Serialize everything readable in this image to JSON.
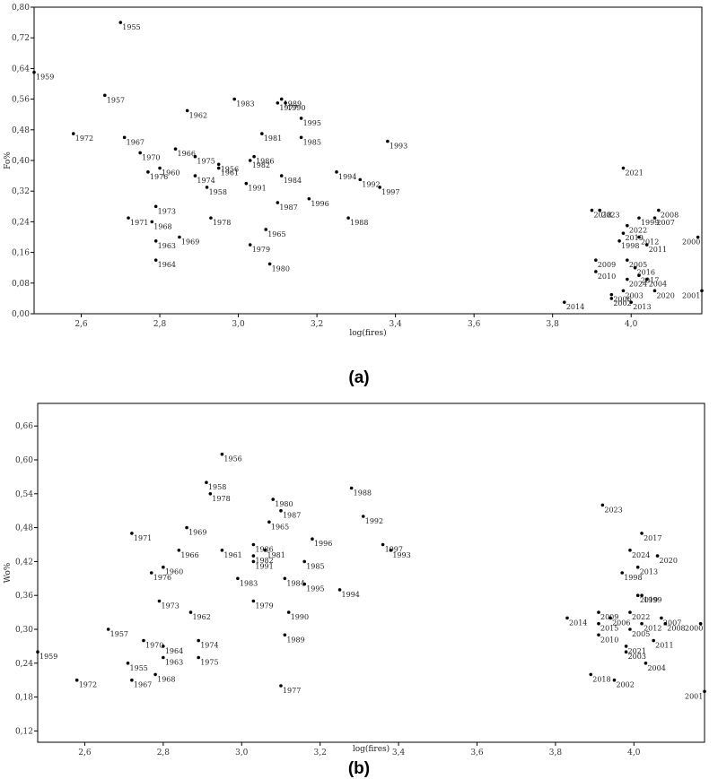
{
  "chart_data": [
    {
      "type": "scatter",
      "caption": "(a)",
      "xlabel": "log(fires)",
      "ylabel": "Fo%",
      "xlim": [
        2.48,
        4.18
      ],
      "ylim": [
        0.0,
        0.8
      ],
      "x_ticks": [
        "2,6",
        "2,8",
        "3,0",
        "3,2",
        "3,4",
        "3,6",
        "3,8",
        "4,0"
      ],
      "y_ticks": [
        "0,00",
        "0,08",
        "0,16",
        "0,24",
        "0,32",
        "0,40",
        "0,48",
        "0,56",
        "0,64",
        "0,72",
        "0,80"
      ],
      "grid": false,
      "points": [
        {
          "label": "1955",
          "x": 2.7,
          "y": 0.76
        },
        {
          "label": "1959",
          "x": 2.48,
          "y": 0.63
        },
        {
          "label": "1957",
          "x": 2.66,
          "y": 0.57
        },
        {
          "label": "1983",
          "x": 2.99,
          "y": 0.56
        },
        {
          "label": "1989",
          "x": 3.11,
          "y": 0.56
        },
        {
          "label": "1977",
          "x": 3.1,
          "y": 0.55
        },
        {
          "label": "1990",
          "x": 3.12,
          "y": 0.55
        },
        {
          "label": "1962",
          "x": 2.87,
          "y": 0.53
        },
        {
          "label": "1995",
          "x": 3.16,
          "y": 0.51
        },
        {
          "label": "1972",
          "x": 2.58,
          "y": 0.47
        },
        {
          "label": "1981",
          "x": 3.06,
          "y": 0.47
        },
        {
          "label": "1967",
          "x": 2.71,
          "y": 0.46
        },
        {
          "label": "1985",
          "x": 3.16,
          "y": 0.46
        },
        {
          "label": "1993",
          "x": 3.38,
          "y": 0.45
        },
        {
          "label": "1966",
          "x": 2.84,
          "y": 0.43
        },
        {
          "label": "1970",
          "x": 2.75,
          "y": 0.42
        },
        {
          "label": "1975",
          "x": 2.89,
          "y": 0.41
        },
        {
          "label": "1986",
          "x": 3.04,
          "y": 0.41
        },
        {
          "label": "1982",
          "x": 3.03,
          "y": 0.4
        },
        {
          "label": "1956",
          "x": 2.95,
          "y": 0.39
        },
        {
          "label": "1961",
          "x": 2.95,
          "y": 0.38
        },
        {
          "label": "1960",
          "x": 2.8,
          "y": 0.38
        },
        {
          "label": "1976",
          "x": 2.77,
          "y": 0.37
        },
        {
          "label": "1994",
          "x": 3.25,
          "y": 0.37
        },
        {
          "label": "1974",
          "x": 2.89,
          "y": 0.36
        },
        {
          "label": "1984",
          "x": 3.11,
          "y": 0.36
        },
        {
          "label": "1992",
          "x": 3.31,
          "y": 0.35
        },
        {
          "label": "1991",
          "x": 3.02,
          "y": 0.34
        },
        {
          "label": "1958",
          "x": 2.92,
          "y": 0.33
        },
        {
          "label": "1997",
          "x": 3.36,
          "y": 0.33
        },
        {
          "label": "1996",
          "x": 3.18,
          "y": 0.3
        },
        {
          "label": "1987",
          "x": 3.1,
          "y": 0.29
        },
        {
          "label": "1973",
          "x": 2.79,
          "y": 0.28
        },
        {
          "label": "1971",
          "x": 2.72,
          "y": 0.25
        },
        {
          "label": "1968",
          "x": 2.78,
          "y": 0.24
        },
        {
          "label": "1978",
          "x": 2.93,
          "y": 0.25
        },
        {
          "label": "1988",
          "x": 3.28,
          "y": 0.25
        },
        {
          "label": "1965",
          "x": 3.07,
          "y": 0.22
        },
        {
          "label": "1969",
          "x": 2.85,
          "y": 0.2
        },
        {
          "label": "1963",
          "x": 2.79,
          "y": 0.19
        },
        {
          "label": "1979",
          "x": 3.03,
          "y": 0.18
        },
        {
          "label": "1964",
          "x": 2.79,
          "y": 0.14
        },
        {
          "label": "1980",
          "x": 3.08,
          "y": 0.13
        },
        {
          "label": "2021",
          "x": 3.98,
          "y": 0.38
        },
        {
          "label": "2018",
          "x": 3.9,
          "y": 0.27
        },
        {
          "label": "2023",
          "x": 3.92,
          "y": 0.27
        },
        {
          "label": "2008",
          "x": 4.07,
          "y": 0.27
        },
        {
          "label": "1999",
          "x": 4.02,
          "y": 0.25
        },
        {
          "label": "2007",
          "x": 4.06,
          "y": 0.25
        },
        {
          "label": "2022",
          "x": 3.99,
          "y": 0.23
        },
        {
          "label": "2019",
          "x": 3.98,
          "y": 0.21
        },
        {
          "label": "2012",
          "x": 4.02,
          "y": 0.2
        },
        {
          "label": "2000",
          "x": 4.17,
          "y": 0.2
        },
        {
          "label": "1998",
          "x": 3.97,
          "y": 0.19
        },
        {
          "label": "2011",
          "x": 4.04,
          "y": 0.18
        },
        {
          "label": "2009",
          "x": 3.91,
          "y": 0.14
        },
        {
          "label": "2005",
          "x": 3.99,
          "y": 0.14
        },
        {
          "label": "2016",
          "x": 4.01,
          "y": 0.12
        },
        {
          "label": "2010",
          "x": 3.91,
          "y": 0.11
        },
        {
          "label": "2017",
          "x": 4.02,
          "y": 0.1
        },
        {
          "label": "2024",
          "x": 3.99,
          "y": 0.09
        },
        {
          "label": "2004",
          "x": 4.04,
          "y": 0.09
        },
        {
          "label": "2003",
          "x": 3.98,
          "y": 0.06
        },
        {
          "label": "2020",
          "x": 4.06,
          "y": 0.06
        },
        {
          "label": "2001",
          "x": 4.18,
          "y": 0.06
        },
        {
          "label": "2006",
          "x": 3.95,
          "y": 0.05
        },
        {
          "label": "2002",
          "x": 3.95,
          "y": 0.04
        },
        {
          "label": "2014",
          "x": 3.83,
          "y": 0.03
        },
        {
          "label": "2013",
          "x": 4.0,
          "y": 0.03
        }
      ]
    },
    {
      "type": "scatter",
      "caption": "(b)",
      "xlabel": "log(fires)",
      "ylabel": "Wo%",
      "xlim": [
        2.48,
        4.18
      ],
      "ylim": [
        0.1,
        0.7
      ],
      "x_ticks": [
        "2,6",
        "2,8",
        "3,0",
        "3,2",
        "3,4",
        "3,6",
        "3,8",
        "4,0"
      ],
      "y_ticks": [
        "0,12",
        "0,18",
        "0,24",
        "0,30",
        "0,36",
        "0,42",
        "0,48",
        "0,54",
        "0,60",
        "0,66"
      ],
      "grid": false,
      "points": [
        {
          "label": "1956",
          "x": 2.95,
          "y": 0.61
        },
        {
          "label": "1958",
          "x": 2.91,
          "y": 0.56
        },
        {
          "label": "1988",
          "x": 3.28,
          "y": 0.55
        },
        {
          "label": "1978",
          "x": 2.92,
          "y": 0.54
        },
        {
          "label": "1980",
          "x": 3.08,
          "y": 0.53
        },
        {
          "label": "1987",
          "x": 3.1,
          "y": 0.51
        },
        {
          "label": "1992",
          "x": 3.31,
          "y": 0.5
        },
        {
          "label": "1965",
          "x": 3.07,
          "y": 0.49
        },
        {
          "label": "1969",
          "x": 2.86,
          "y": 0.48
        },
        {
          "label": "1971",
          "x": 2.72,
          "y": 0.47
        },
        {
          "label": "1996",
          "x": 3.18,
          "y": 0.46
        },
        {
          "label": "1997",
          "x": 3.36,
          "y": 0.45
        },
        {
          "label": "1993",
          "x": 3.38,
          "y": 0.44
        },
        {
          "label": "1966",
          "x": 2.84,
          "y": 0.44
        },
        {
          "label": "1961",
          "x": 2.95,
          "y": 0.44
        },
        {
          "label": "1986",
          "x": 3.03,
          "y": 0.45
        },
        {
          "label": "1982",
          "x": 3.03,
          "y": 0.43
        },
        {
          "label": "1981",
          "x": 3.06,
          "y": 0.44
        },
        {
          "label": "1991",
          "x": 3.03,
          "y": 0.42
        },
        {
          "label": "1985",
          "x": 3.16,
          "y": 0.42
        },
        {
          "label": "1960",
          "x": 2.8,
          "y": 0.41
        },
        {
          "label": "1976",
          "x": 2.77,
          "y": 0.4
        },
        {
          "label": "1984",
          "x": 3.11,
          "y": 0.39
        },
        {
          "label": "1983",
          "x": 2.99,
          "y": 0.39
        },
        {
          "label": "1995",
          "x": 3.16,
          "y": 0.38
        },
        {
          "label": "1994",
          "x": 3.25,
          "y": 0.37
        },
        {
          "label": "1973",
          "x": 2.79,
          "y": 0.35
        },
        {
          "label": "1979",
          "x": 3.03,
          "y": 0.35
        },
        {
          "label": "1962",
          "x": 2.87,
          "y": 0.33
        },
        {
          "label": "1990",
          "x": 3.12,
          "y": 0.33
        },
        {
          "label": "1957",
          "x": 2.66,
          "y": 0.3
        },
        {
          "label": "1989",
          "x": 3.11,
          "y": 0.29
        },
        {
          "label": "1970",
          "x": 2.75,
          "y": 0.28
        },
        {
          "label": "1974",
          "x": 2.89,
          "y": 0.28
        },
        {
          "label": "1964",
          "x": 2.8,
          "y": 0.27
        },
        {
          "label": "1959",
          "x": 2.48,
          "y": 0.26
        },
        {
          "label": "1963",
          "x": 2.8,
          "y": 0.25
        },
        {
          "label": "1975",
          "x": 2.89,
          "y": 0.25
        },
        {
          "label": "1955",
          "x": 2.71,
          "y": 0.24
        },
        {
          "label": "1968",
          "x": 2.78,
          "y": 0.22
        },
        {
          "label": "1972",
          "x": 2.58,
          "y": 0.21
        },
        {
          "label": "1967",
          "x": 2.72,
          "y": 0.21
        },
        {
          "label": "1977",
          "x": 3.1,
          "y": 0.2
        },
        {
          "label": "2023",
          "x": 3.92,
          "y": 0.52
        },
        {
          "label": "2017",
          "x": 4.02,
          "y": 0.47
        },
        {
          "label": "2024",
          "x": 3.99,
          "y": 0.44
        },
        {
          "label": "2020",
          "x": 4.06,
          "y": 0.43
        },
        {
          "label": "2013",
          "x": 4.01,
          "y": 0.41
        },
        {
          "label": "1998",
          "x": 3.97,
          "y": 0.4
        },
        {
          "label": "2019",
          "x": 4.01,
          "y": 0.36
        },
        {
          "label": "1999",
          "x": 4.02,
          "y": 0.36
        },
        {
          "label": "2009",
          "x": 3.91,
          "y": 0.33
        },
        {
          "label": "2022",
          "x": 3.99,
          "y": 0.33
        },
        {
          "label": "2006",
          "x": 3.94,
          "y": 0.32
        },
        {
          "label": "2014",
          "x": 3.83,
          "y": 0.32
        },
        {
          "label": "2007",
          "x": 4.07,
          "y": 0.32
        },
        {
          "label": "2015",
          "x": 3.91,
          "y": 0.31
        },
        {
          "label": "2012",
          "x": 4.02,
          "y": 0.31
        },
        {
          "label": "2008",
          "x": 4.08,
          "y": 0.31
        },
        {
          "label": "2000",
          "x": 4.17,
          "y": 0.31
        },
        {
          "label": "2005",
          "x": 3.99,
          "y": 0.3
        },
        {
          "label": "2010",
          "x": 3.91,
          "y": 0.29
        },
        {
          "label": "2011",
          "x": 4.05,
          "y": 0.28
        },
        {
          "label": "2021",
          "x": 3.98,
          "y": 0.27
        },
        {
          "label": "2003",
          "x": 3.98,
          "y": 0.26
        },
        {
          "label": "2004",
          "x": 4.03,
          "y": 0.24
        },
        {
          "label": "2018",
          "x": 3.89,
          "y": 0.22
        },
        {
          "label": "2002",
          "x": 3.95,
          "y": 0.21
        },
        {
          "label": "2001",
          "x": 4.18,
          "y": 0.19
        }
      ]
    }
  ]
}
